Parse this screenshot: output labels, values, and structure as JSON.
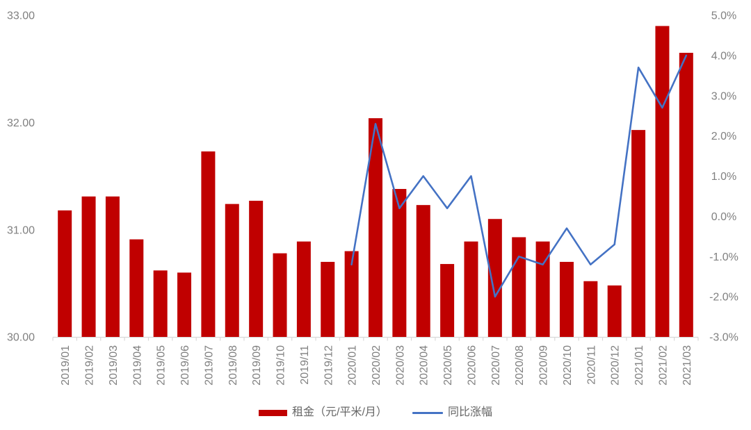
{
  "chart_data": {
    "type": "combo",
    "title": "",
    "categories": [
      "2019/01",
      "2019/02",
      "2019/03",
      "2019/04",
      "2019/05",
      "2019/06",
      "2019/07",
      "2019/08",
      "2019/09",
      "2019/10",
      "2019/11",
      "2019/12",
      "2020/01",
      "2020/02",
      "2020/03",
      "2020/04",
      "2020/05",
      "2020/06",
      "2020/07",
      "2020/08",
      "2020/09",
      "2020/10",
      "2020/11",
      "2020/12",
      "2021/01",
      "2021/02",
      "2021/03"
    ],
    "series": [
      {
        "name": "租金（元/平米/月）",
        "type": "bar",
        "axis": "left",
        "color": "#C00000",
        "values": [
          31.18,
          31.31,
          31.31,
          30.91,
          30.62,
          30.6,
          31.73,
          31.24,
          31.27,
          30.78,
          30.89,
          30.7,
          30.8,
          32.04,
          31.38,
          31.23,
          30.68,
          30.89,
          31.1,
          30.93,
          30.89,
          30.7,
          30.52,
          30.48,
          31.93,
          32.9,
          32.65
        ]
      },
      {
        "name": "同比涨幅",
        "type": "line",
        "axis": "right",
        "color": "#4472C4",
        "start_index": 12,
        "values_pct": [
          -1.2,
          2.3,
          0.2,
          1.0,
          0.2,
          1.0,
          -2.0,
          -1.0,
          -1.2,
          -0.3,
          -1.2,
          -0.7,
          3.7,
          2.7,
          4.0
        ]
      }
    ],
    "left_axis": {
      "min": 30,
      "max": 33,
      "tick_values": [
        33,
        32,
        31,
        30
      ],
      "tick_labels": [
        "33.00",
        "32.00",
        "31.00",
        "30.00"
      ]
    },
    "right_axis": {
      "min": -3,
      "max": 5,
      "tick_values": [
        5,
        4,
        3,
        2,
        1,
        0,
        -1,
        -2,
        -3
      ],
      "tick_labels": [
        "5.0%",
        "4.0%",
        "3.0%",
        "2.0%",
        "1.0%",
        "0.0%",
        "-1.0%",
        "-2.0%",
        "-3.0%"
      ]
    },
    "grid": false,
    "legend_position": "bottom"
  },
  "legend": {
    "items": [
      {
        "label": "租金（元/平米/月）",
        "swatch": "bar-swatch",
        "color": "#C00000"
      },
      {
        "label": "同比涨幅",
        "swatch": "line-swatch",
        "color": "#4472C4"
      }
    ]
  },
  "colors": {
    "bar_red": "#C00000",
    "line_blue": "#4472C4",
    "axis_text": "#808080",
    "axis_line": "#D9D9D9",
    "legend_text": "#666666",
    "background": "#FFFFFF"
  }
}
